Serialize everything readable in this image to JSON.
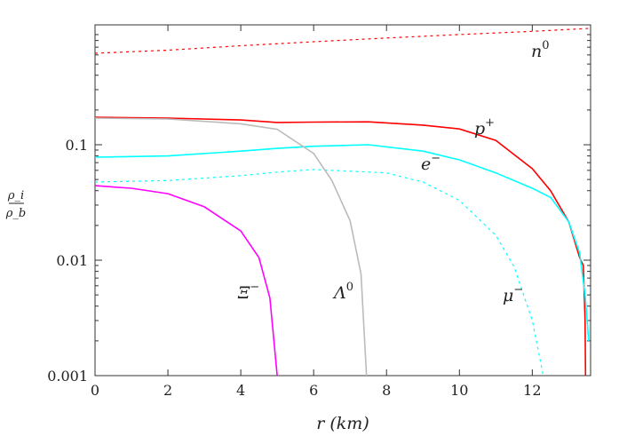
{
  "chart_data": {
    "type": "line",
    "xlabel": "r (km)",
    "ylabel": "ρi / ρb",
    "ylabel_num": "ρ_i",
    "ylabel_den": "ρ_b",
    "xlim": [
      0,
      13.6
    ],
    "ylim": [
      0.001,
      1.08
    ],
    "yscale": "log",
    "grid": false,
    "xticks": [
      "0",
      "2",
      "4",
      "6",
      "8",
      "10",
      "12"
    ],
    "yticks": [
      "0.001",
      "0.01",
      "0.1"
    ],
    "series": [
      {
        "name": "n⁰",
        "label_base": "n",
        "label_sup": "0",
        "color": "#ff0000",
        "dash": true,
        "x": [
          0,
          2,
          4,
          6,
          8,
          10,
          12,
          13.6
        ],
        "y": [
          0.62,
          0.66,
          0.72,
          0.78,
          0.84,
          0.9,
          0.96,
          1.02
        ]
      },
      {
        "name": "p⁺",
        "label_base": "p",
        "label_sup": "+",
        "color": "#ff0000",
        "dash": false,
        "x": [
          0,
          2,
          4,
          5,
          6,
          7.5,
          9,
          10,
          11,
          12,
          12.5,
          13,
          13.3,
          13.4,
          13.45,
          13.46
        ],
        "y": [
          0.173,
          0.17,
          0.164,
          0.156,
          0.157,
          0.158,
          0.148,
          0.137,
          0.109,
          0.062,
          0.04,
          0.0215,
          0.0105,
          0.009,
          0.003,
          0.001
        ]
      },
      {
        "name": "e⁻",
        "label_base": "e",
        "label_sup": "−",
        "color": "#00ffff",
        "dash": false,
        "x": [
          0,
          2,
          4,
          5,
          6,
          7.5,
          9,
          10,
          11,
          12,
          12.5,
          13,
          13.3,
          13.45,
          13.55
        ],
        "y": [
          0.078,
          0.08,
          0.088,
          0.093,
          0.097,
          0.1,
          0.088,
          0.074,
          0.057,
          0.042,
          0.035,
          0.0215,
          0.0115,
          0.005,
          0.002
        ]
      },
      {
        "name": "μ⁻",
        "label_base": "μ",
        "label_sup": "−",
        "color": "#00ffff",
        "dash": true,
        "x": [
          0,
          2,
          4,
          5,
          6,
          8,
          9,
          10,
          11,
          11.5,
          12,
          12.3
        ],
        "y": [
          0.0475,
          0.049,
          0.054,
          0.058,
          0.061,
          0.057,
          0.0475,
          0.033,
          0.0164,
          0.0088,
          0.003,
          0.001
        ]
      },
      {
        "name": "Λ⁰",
        "label_base": "Λ",
        "label_sup": "0",
        "color": "#bbbbbb",
        "dash": false,
        "x": [
          0,
          2,
          4,
          5,
          6,
          6.5,
          7,
          7.3,
          7.45
        ],
        "y": [
          0.17,
          0.167,
          0.152,
          0.136,
          0.084,
          0.049,
          0.022,
          0.0076,
          0.001
        ]
      },
      {
        "name": "Ξ⁻",
        "label_base": "Ξ",
        "label_sup": "−",
        "color": "#ff00ff",
        "dash": false,
        "x": [
          0,
          1,
          2,
          3,
          4,
          4.5,
          4.8,
          5
        ],
        "y": [
          0.0442,
          0.042,
          0.0377,
          0.029,
          0.0179,
          0.0105,
          0.0047,
          0.001
        ]
      }
    ]
  }
}
